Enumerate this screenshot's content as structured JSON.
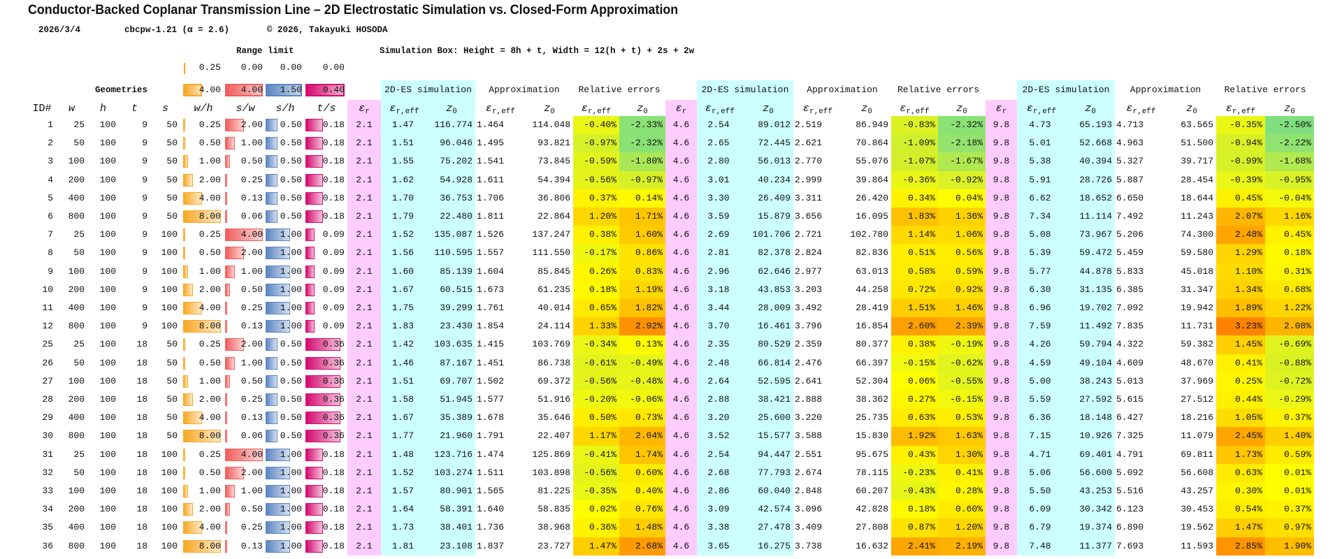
{
  "title": "Conductor-Backed Coplanar Transmission Line – 2D Electrostatic Simulation vs. Closed-Form Approximation",
  "meta": {
    "date": "2026/3/4",
    "version": "cbcpw-1.21 (α = 2.6)",
    "copyright": "© 2026, Takayuki HOSODA"
  },
  "range_limit": {
    "label": "Range limit",
    "mins": [
      "0.25",
      "0.00",
      "0.00",
      "0.00"
    ],
    "maxs": [
      "4.00",
      "4.00",
      "1.50",
      "0.40"
    ]
  },
  "sim_box": "Simulation Box: Height  = 8h + t, Width = 12(h + t) + 2s + 2w",
  "geometries_label": "Geometries",
  "group_labels": {
    "sim": "2D-ES simulation",
    "approx": "Approximation",
    "rel": "Relative errors"
  },
  "col_headers": {
    "id": "ID#",
    "w": "w",
    "h": "h",
    "t": "t",
    "s": "s",
    "wh": "w/h",
    "sw": "s/w",
    "sh": "s/h",
    "ts": "t/s",
    "eps": "ε",
    "r": "r",
    "reff": "r,eff",
    "z": "z",
    "zero": "0"
  },
  "colors": {
    "wh": "#f9a825",
    "sw": "#f25c5c",
    "sh": "#5b85c2",
    "ts": "#d4096f",
    "pink": "#ffccff",
    "cyan": "#ccffff"
  },
  "eps_r": [
    "2.1",
    "4.6",
    "9.8"
  ],
  "rows": [
    {
      "id": "1",
      "w": "25",
      "h": "100",
      "t": "9",
      "s": "50",
      "wh": "0.25",
      "sw": "2.00",
      "sh": "0.50",
      "ts": "0.18",
      "g": [
        [
          "1.47",
          "116.774",
          "1.464",
          "114.048",
          "-0.40%",
          "-2.33%"
        ],
        [
          "2.54",
          "89.012",
          "2.519",
          "86.949",
          "-0.83%",
          "-2.32%"
        ],
        [
          "4.73",
          "65.193",
          "4.713",
          "63.565",
          "-0.35%",
          "-2.50%"
        ]
      ]
    },
    {
      "id": "2",
      "w": "50",
      "h": "100",
      "t": "9",
      "s": "50",
      "wh": "0.50",
      "sw": "1.00",
      "sh": "0.50",
      "ts": "0.18",
      "g": [
        [
          "1.51",
          "96.046",
          "1.495",
          "93.821",
          "-0.97%",
          "-2.32%"
        ],
        [
          "2.65",
          "72.445",
          "2.621",
          "70.864",
          "-1.09%",
          "-2.18%"
        ],
        [
          "5.01",
          "52.668",
          "4.963",
          "51.500",
          "-0.94%",
          "-2.22%"
        ]
      ]
    },
    {
      "id": "3",
      "w": "100",
      "h": "100",
      "t": "9",
      "s": "50",
      "wh": "1.00",
      "sw": "0.50",
      "sh": "0.50",
      "ts": "0.18",
      "g": [
        [
          "1.55",
          "75.202",
          "1.541",
          "73.845",
          "-0.59%",
          "-1.80%"
        ],
        [
          "2.80",
          "56.013",
          "2.770",
          "55.076",
          "-1.07%",
          "-1.67%"
        ],
        [
          "5.38",
          "40.394",
          "5.327",
          "39.717",
          "-0.99%",
          "-1.68%"
        ]
      ]
    },
    {
      "id": "4",
      "w": "200",
      "h": "100",
      "t": "9",
      "s": "50",
      "wh": "2.00",
      "sw": "0.25",
      "sh": "0.50",
      "ts": "0.18",
      "g": [
        [
          "1.62",
          "54.928",
          "1.611",
          "54.394",
          "-0.56%",
          "-0.97%"
        ],
        [
          "3.01",
          "40.234",
          "2.999",
          "39.864",
          "-0.36%",
          "-0.92%"
        ],
        [
          "5.91",
          "28.726",
          "5.887",
          "28.454",
          "-0.39%",
          "-0.95%"
        ]
      ]
    },
    {
      "id": "5",
      "w": "400",
      "h": "100",
      "t": "9",
      "s": "50",
      "wh": "4.00",
      "sw": "0.13",
      "sh": "0.50",
      "ts": "0.18",
      "g": [
        [
          "1.70",
          "36.753",
          "1.706",
          "36.806",
          "0.37%",
          "0.14%"
        ],
        [
          "3.30",
          "26.409",
          "3.311",
          "26.420",
          "0.34%",
          "0.04%"
        ],
        [
          "6.62",
          "18.652",
          "6.650",
          "18.644",
          "0.45%",
          "-0.04%"
        ]
      ]
    },
    {
      "id": "6",
      "w": "800",
      "h": "100",
      "t": "9",
      "s": "50",
      "wh": "8.00",
      "sw": "0.06",
      "sh": "0.50",
      "ts": "0.18",
      "g": [
        [
          "1.79",
          "22.480",
          "1.811",
          "22.864",
          "1.20%",
          "1.71%"
        ],
        [
          "3.59",
          "15.879",
          "3.656",
          "16.095",
          "1.83%",
          "1.36%"
        ],
        [
          "7.34",
          "11.114",
          "7.492",
          "11.243",
          "2.07%",
          "1.16%"
        ]
      ]
    },
    {
      "id": "7",
      "w": "25",
      "h": "100",
      "t": "9",
      "s": "100",
      "wh": "0.25",
      "sw": "4.00",
      "sh": "1.00",
      "ts": "0.09",
      "g": [
        [
          "1.52",
          "135.087",
          "1.526",
          "137.247",
          "0.38%",
          "1.60%"
        ],
        [
          "2.69",
          "101.706",
          "2.721",
          "102.780",
          "1.14%",
          "1.06%"
        ],
        [
          "5.08",
          "73.967",
          "5.206",
          "74.300",
          "2.48%",
          "0.45%"
        ]
      ]
    },
    {
      "id": "8",
      "w": "50",
      "h": "100",
      "t": "9",
      "s": "100",
      "wh": "0.50",
      "sw": "2.00",
      "sh": "1.00",
      "ts": "0.09",
      "g": [
        [
          "1.56",
          "110.595",
          "1.557",
          "111.550",
          "-0.17%",
          "0.86%"
        ],
        [
          "2.81",
          "82.378",
          "2.824",
          "82.836",
          "0.51%",
          "0.56%"
        ],
        [
          "5.39",
          "59.472",
          "5.459",
          "59.580",
          "1.29%",
          "0.18%"
        ]
      ]
    },
    {
      "id": "9",
      "w": "100",
      "h": "100",
      "t": "9",
      "s": "100",
      "wh": "1.00",
      "sw": "1.00",
      "sh": "1.00",
      "ts": "0.09",
      "g": [
        [
          "1.60",
          "85.139",
          "1.604",
          "85.845",
          "0.26%",
          "0.83%"
        ],
        [
          "2.96",
          "62.646",
          "2.977",
          "63.013",
          "0.58%",
          "0.59%"
        ],
        [
          "5.77",
          "44.878",
          "5.833",
          "45.018",
          "1.10%",
          "0.31%"
        ]
      ]
    },
    {
      "id": "10",
      "w": "200",
      "h": "100",
      "t": "9",
      "s": "100",
      "wh": "2.00",
      "sw": "0.50",
      "sh": "1.00",
      "ts": "0.09",
      "g": [
        [
          "1.67",
          "60.515",
          "1.673",
          "61.235",
          "0.18%",
          "1.19%"
        ],
        [
          "3.18",
          "43.853",
          "3.203",
          "44.258",
          "0.72%",
          "0.92%"
        ],
        [
          "6.30",
          "31.135",
          "6.385",
          "31.347",
          "1.34%",
          "0.68%"
        ]
      ]
    },
    {
      "id": "11",
      "w": "400",
      "h": "100",
      "t": "9",
      "s": "100",
      "wh": "4.00",
      "sw": "0.25",
      "sh": "1.00",
      "ts": "0.09",
      "g": [
        [
          "1.75",
          "39.299",
          "1.761",
          "40.014",
          "0.65%",
          "1.82%"
        ],
        [
          "3.44",
          "28.009",
          "3.492",
          "28.419",
          "1.51%",
          "1.46%"
        ],
        [
          "6.96",
          "19.702",
          "7.092",
          "19.942",
          "1.89%",
          "1.22%"
        ]
      ]
    },
    {
      "id": "12",
      "w": "800",
      "h": "100",
      "t": "9",
      "s": "100",
      "wh": "8.00",
      "sw": "0.13",
      "sh": "1.00",
      "ts": "0.09",
      "g": [
        [
          "1.83",
          "23.430",
          "1.854",
          "24.114",
          "1.33%",
          "2.92%"
        ],
        [
          "3.70",
          "16.461",
          "3.796",
          "16.854",
          "2.60%",
          "2.39%"
        ],
        [
          "7.59",
          "11.492",
          "7.835",
          "11.731",
          "3.23%",
          "2.08%"
        ]
      ]
    },
    {
      "id": "25",
      "w": "25",
      "h": "100",
      "t": "18",
      "s": "50",
      "wh": "0.25",
      "sw": "2.00",
      "sh": "0.50",
      "ts": "0.36",
      "g": [
        [
          "1.42",
          "103.635",
          "1.415",
          "103.769",
          "-0.34%",
          "0.13%"
        ],
        [
          "2.35",
          "80.529",
          "2.359",
          "80.377",
          "0.38%",
          "-0.19%"
        ],
        [
          "4.26",
          "59.794",
          "4.322",
          "59.382",
          "1.45%",
          "-0.69%"
        ]
      ]
    },
    {
      "id": "26",
      "w": "50",
      "h": "100",
      "t": "18",
      "s": "50",
      "wh": "0.50",
      "sw": "1.00",
      "sh": "0.50",
      "ts": "0.36",
      "g": [
        [
          "1.46",
          "87.167",
          "1.451",
          "86.738",
          "-0.61%",
          "-0.49%"
        ],
        [
          "2.48",
          "66.814",
          "2.476",
          "66.397",
          "-0.15%",
          "-0.62%"
        ],
        [
          "4.59",
          "49.104",
          "4.609",
          "48.670",
          "0.41%",
          "-0.88%"
        ]
      ]
    },
    {
      "id": "27",
      "w": "100",
      "h": "100",
      "t": "18",
      "s": "50",
      "wh": "1.00",
      "sw": "0.50",
      "sh": "0.50",
      "ts": "0.36",
      "g": [
        [
          "1.51",
          "69.707",
          "1.502",
          "69.372",
          "-0.56%",
          "-0.48%"
        ],
        [
          "2.64",
          "52.595",
          "2.641",
          "52.304",
          "0.06%",
          "-0.55%"
        ],
        [
          "5.00",
          "38.243",
          "5.013",
          "37.969",
          "0.25%",
          "-0.72%"
        ]
      ]
    },
    {
      "id": "28",
      "w": "200",
      "h": "100",
      "t": "18",
      "s": "50",
      "wh": "2.00",
      "sw": "0.25",
      "sh": "0.50",
      "ts": "0.36",
      "g": [
        [
          "1.58",
          "51.945",
          "1.577",
          "51.916",
          "-0.20%",
          "-0.06%"
        ],
        [
          "2.88",
          "38.421",
          "2.888",
          "38.362",
          "0.27%",
          "-0.15%"
        ],
        [
          "5.59",
          "27.592",
          "5.615",
          "27.512",
          "0.44%",
          "-0.29%"
        ]
      ]
    },
    {
      "id": "29",
      "w": "400",
      "h": "100",
      "t": "18",
      "s": "50",
      "wh": "4.00",
      "sw": "0.13",
      "sh": "0.50",
      "ts": "0.36",
      "g": [
        [
          "1.67",
          "35.389",
          "1.678",
          "35.646",
          "0.50%",
          "0.73%"
        ],
        [
          "3.20",
          "25.600",
          "3.220",
          "25.735",
          "0.63%",
          "0.53%"
        ],
        [
          "6.36",
          "18.148",
          "6.427",
          "18.216",
          "1.05%",
          "0.37%"
        ]
      ]
    },
    {
      "id": "30",
      "w": "800",
      "h": "100",
      "t": "18",
      "s": "50",
      "wh": "8.00",
      "sw": "0.06",
      "sh": "0.50",
      "ts": "0.36",
      "g": [
        [
          "1.77",
          "21.960",
          "1.791",
          "22.407",
          "1.17%",
          "2.04%"
        ],
        [
          "3.52",
          "15.577",
          "3.588",
          "15.830",
          "1.92%",
          "1.63%"
        ],
        [
          "7.15",
          "10.926",
          "7.325",
          "11.079",
          "2.45%",
          "1.40%"
        ]
      ]
    },
    {
      "id": "31",
      "w": "25",
      "h": "100",
      "t": "18",
      "s": "100",
      "wh": "0.25",
      "sw": "4.00",
      "sh": "1.00",
      "ts": "0.18",
      "g": [
        [
          "1.48",
          "123.716",
          "1.474",
          "125.869",
          "-0.41%",
          "1.74%"
        ],
        [
          "2.54",
          "94.447",
          "2.551",
          "95.675",
          "0.43%",
          "1.30%"
        ],
        [
          "4.71",
          "69.401",
          "4.791",
          "69.811",
          "1.73%",
          "0.59%"
        ]
      ]
    },
    {
      "id": "32",
      "w": "50",
      "h": "100",
      "t": "18",
      "s": "100",
      "wh": "0.50",
      "sw": "2.00",
      "sh": "1.00",
      "ts": "0.18",
      "g": [
        [
          "1.52",
          "103.274",
          "1.511",
          "103.898",
          "-0.56%",
          "0.60%"
        ],
        [
          "2.68",
          "77.793",
          "2.674",
          "78.115",
          "-0.23%",
          "0.41%"
        ],
        [
          "5.06",
          "56.600",
          "5.092",
          "56.608",
          "0.63%",
          "0.01%"
        ]
      ]
    },
    {
      "id": "33",
      "w": "100",
      "h": "100",
      "t": "18",
      "s": "100",
      "wh": "1.00",
      "sw": "1.00",
      "sh": "1.00",
      "ts": "0.18",
      "g": [
        [
          "1.57",
          "80.901",
          "1.565",
          "81.225",
          "-0.35%",
          "0.40%"
        ],
        [
          "2.86",
          "60.040",
          "2.848",
          "60.207",
          "-0.43%",
          "0.28%"
        ],
        [
          "5.50",
          "43.253",
          "5.516",
          "43.257",
          "0.30%",
          "0.01%"
        ]
      ]
    },
    {
      "id": "34",
      "w": "200",
      "h": "100",
      "t": "18",
      "s": "100",
      "wh": "2.00",
      "sw": "0.50",
      "sh": "1.00",
      "ts": "0.18",
      "g": [
        [
          "1.64",
          "58.391",
          "1.640",
          "58.835",
          "0.02%",
          "0.76%"
        ],
        [
          "3.09",
          "42.574",
          "3.096",
          "42.828",
          "0.18%",
          "0.60%"
        ],
        [
          "6.09",
          "30.342",
          "6.123",
          "30.453",
          "0.54%",
          "0.37%"
        ]
      ]
    },
    {
      "id": "35",
      "w": "400",
      "h": "100",
      "t": "18",
      "s": "100",
      "wh": "4.00",
      "sw": "0.25",
      "sh": "1.00",
      "ts": "0.18",
      "g": [
        [
          "1.73",
          "38.401",
          "1.736",
          "38.968",
          "0.36%",
          "1.48%"
        ],
        [
          "3.38",
          "27.478",
          "3.409",
          "27.808",
          "0.87%",
          "1.20%"
        ],
        [
          "6.79",
          "19.374",
          "6.890",
          "19.562",
          "1.47%",
          "0.97%"
        ]
      ]
    },
    {
      "id": "36",
      "w": "800",
      "h": "100",
      "t": "18",
      "s": "100",
      "wh": "8.00",
      "sw": "0.13",
      "sh": "1.00",
      "ts": "0.18",
      "g": [
        [
          "1.81",
          "23.108",
          "1.837",
          "23.727",
          "1.47%",
          "2.68%"
        ],
        [
          "3.65",
          "16.275",
          "3.738",
          "16.632",
          "2.41%",
          "2.19%"
        ],
        [
          "7.48",
          "11.377",
          "7.693",
          "11.593",
          "2.85%",
          "1.90%"
        ]
      ]
    }
  ]
}
